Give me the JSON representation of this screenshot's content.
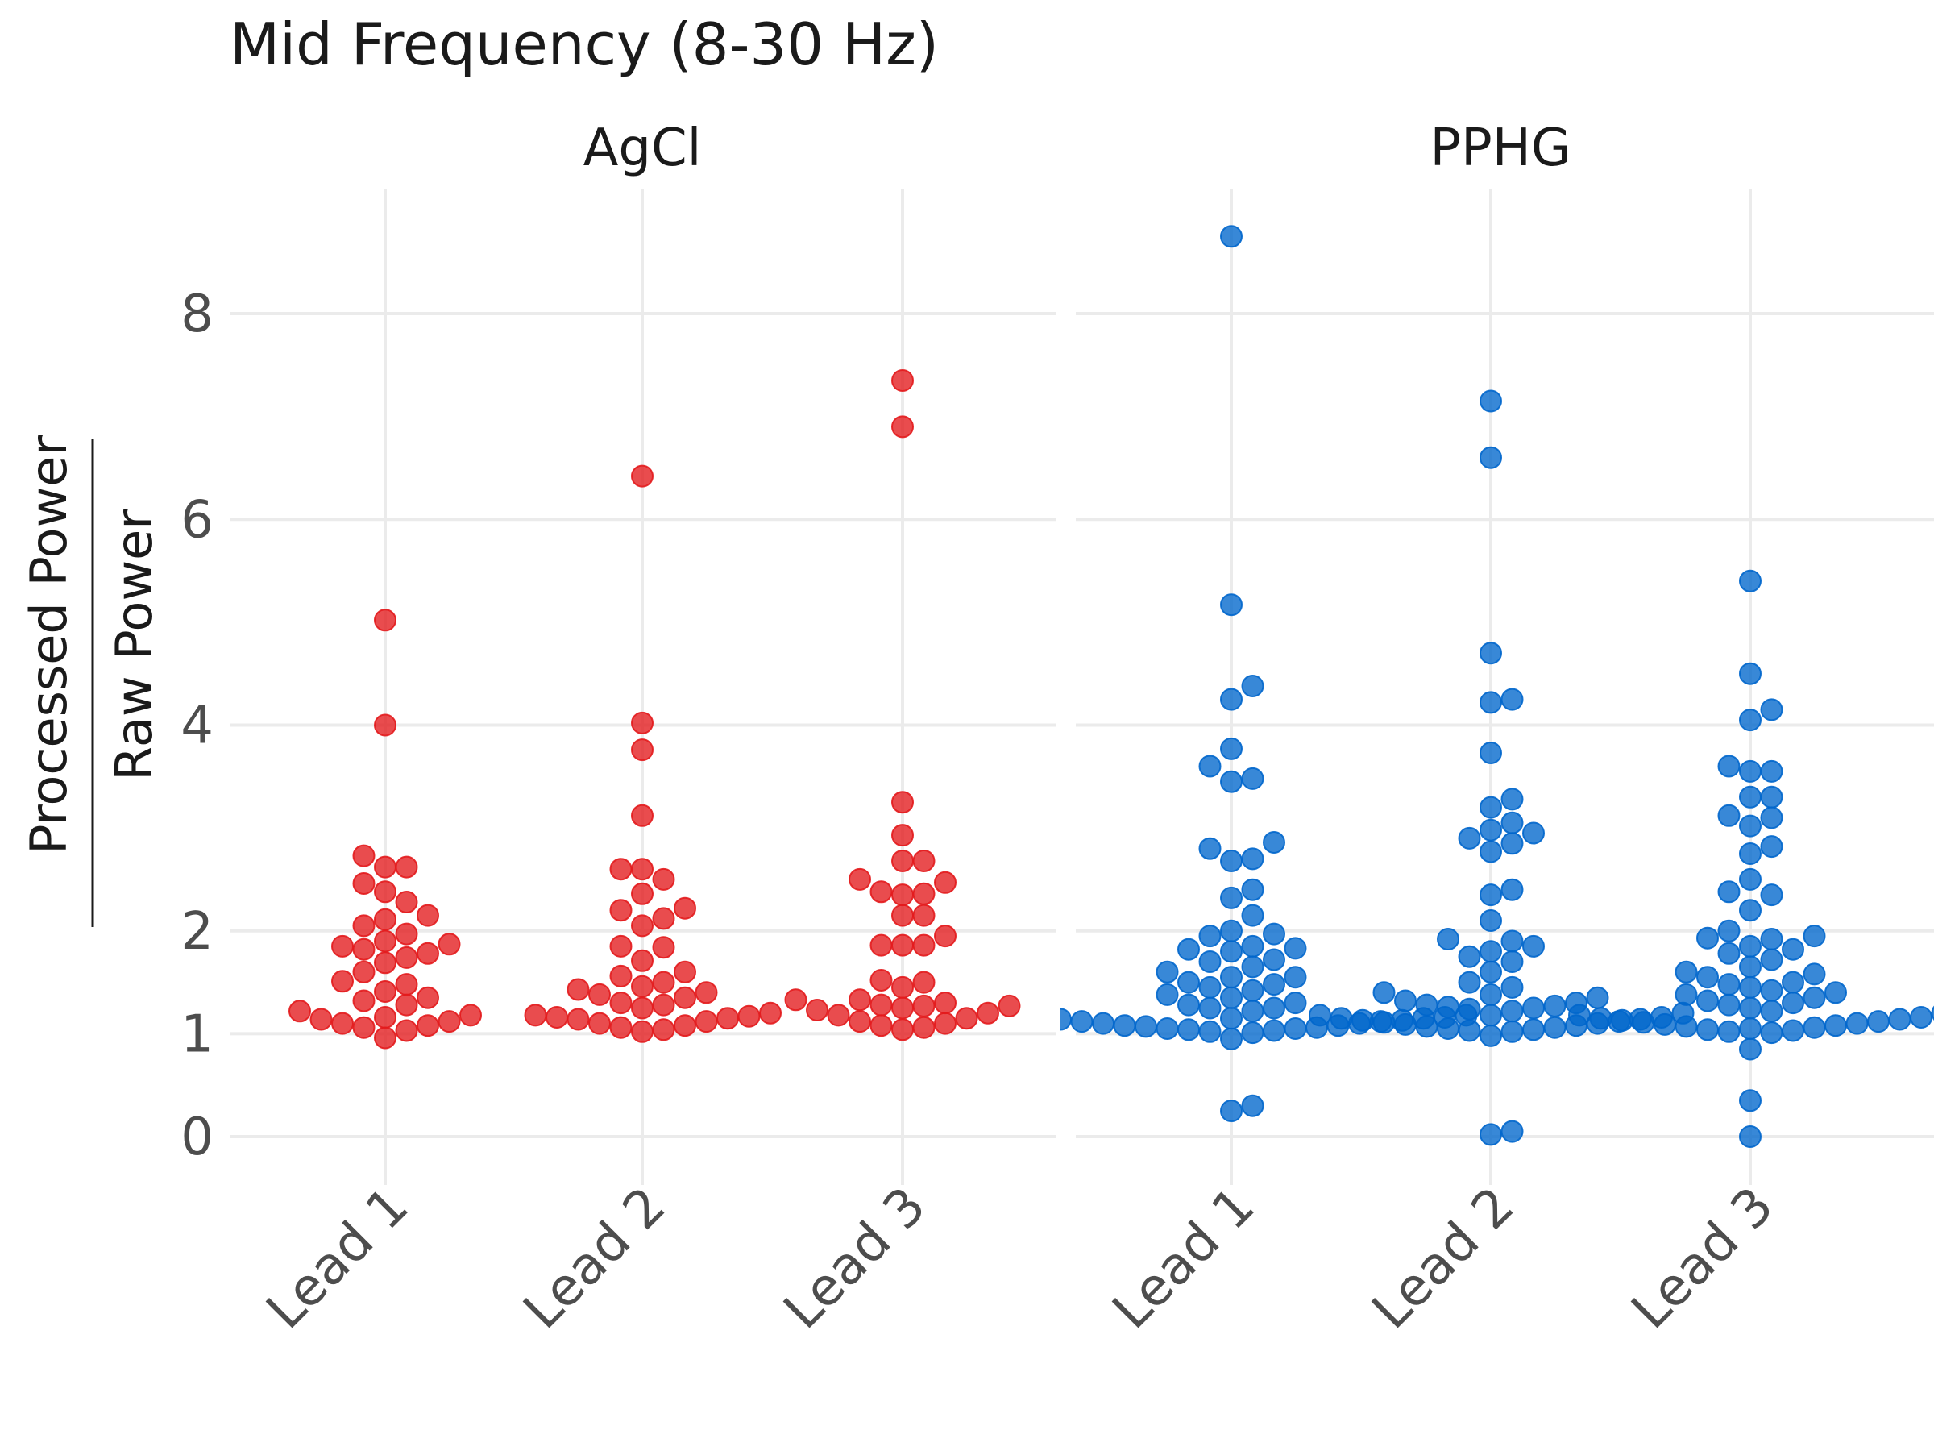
{
  "chart_data": {
    "type": "scatter",
    "title": "Mid Frequency (8-30 Hz)",
    "ylabel": {
      "numerator": "Processed Power",
      "denominator": "Raw Power"
    },
    "xlabel": "",
    "ylim": [
      -0.45,
      9.2
    ],
    "y_ticks": [
      0,
      1,
      2,
      4,
      6,
      8
    ],
    "grid": true,
    "categories": [
      "Lead 1",
      "Lead 2",
      "Lead 3"
    ],
    "panels": [
      {
        "name": "AgCl",
        "color": "#e31a1c",
        "values": {
          "Lead 1": [
            5.02,
            4.0,
            2.73,
            2.62,
            2.62,
            2.46,
            2.38,
            2.28,
            2.15,
            2.11,
            2.05,
            1.97,
            1.9,
            1.87,
            1.85,
            1.82,
            1.78,
            1.74,
            1.69,
            1.6,
            1.51,
            1.48,
            1.41,
            1.35,
            1.32,
            1.28,
            1.22,
            1.18,
            1.16,
            1.14,
            1.12,
            1.1,
            1.08,
            1.06,
            1.03,
            0.96
          ],
          "Lead 2": [
            6.42,
            4.02,
            3.76,
            3.12,
            2.6,
            2.6,
            2.5,
            2.36,
            2.22,
            2.2,
            2.12,
            2.05,
            1.85,
            1.84,
            1.71,
            1.6,
            1.56,
            1.5,
            1.46,
            1.43,
            1.4,
            1.38,
            1.35,
            1.3,
            1.28,
            1.25,
            1.2,
            1.18,
            1.17,
            1.16,
            1.15,
            1.14,
            1.12,
            1.1,
            1.08,
            1.06,
            1.04,
            1.02
          ],
          "Lead 3": [
            7.35,
            6.9,
            3.25,
            2.93,
            2.68,
            2.68,
            2.5,
            2.47,
            2.38,
            2.36,
            2.35,
            2.15,
            2.15,
            1.95,
            1.86,
            1.86,
            1.86,
            1.52,
            1.5,
            1.45,
            1.33,
            1.33,
            1.3,
            1.28,
            1.27,
            1.27,
            1.25,
            1.23,
            1.2,
            1.18,
            1.15,
            1.12,
            1.1,
            1.08,
            1.06,
            1.04
          ]
        }
      },
      {
        "name": "PPHG",
        "color": "#0066cc",
        "values": {
          "Lead 1": [
            8.75,
            5.17,
            4.38,
            4.25,
            3.77,
            3.6,
            3.48,
            3.45,
            2.86,
            2.8,
            2.7,
            2.68,
            2.4,
            2.32,
            2.15,
            2.0,
            1.97,
            1.95,
            1.85,
            1.83,
            1.82,
            1.8,
            1.72,
            1.7,
            1.65,
            1.6,
            1.55,
            1.55,
            1.5,
            1.48,
            1.45,
            1.42,
            1.38,
            1.35,
            1.3,
            1.28,
            1.25,
            1.25,
            1.22,
            1.2,
            1.18,
            1.18,
            1.16,
            1.16,
            1.15,
            1.15,
            1.14,
            1.13,
            1.12,
            1.12,
            1.1,
            1.1,
            1.08,
            1.08,
            1.07,
            1.06,
            1.05,
            1.05,
            1.04,
            1.03,
            1.02,
            1.01,
            0.95,
            0.3,
            0.25
          ],
          "Lead 2": [
            7.15,
            6.6,
            4.7,
            4.25,
            4.22,
            3.73,
            3.28,
            3.2,
            3.05,
            2.98,
            2.95,
            2.9,
            2.85,
            2.77,
            2.4,
            2.35,
            2.1,
            1.92,
            1.9,
            1.85,
            1.8,
            1.75,
            1.7,
            1.6,
            1.5,
            1.45,
            1.4,
            1.38,
            1.35,
            1.32,
            1.3,
            1.28,
            1.27,
            1.26,
            1.25,
            1.24,
            1.22,
            1.2,
            1.18,
            1.18,
            1.16,
            1.15,
            1.14,
            1.13,
            1.12,
            1.11,
            1.1,
            1.09,
            1.08,
            1.07,
            1.06,
            1.05,
            1.04,
            1.03,
            1.02,
            0.98,
            0.05,
            0.02
          ],
          "Lead 3": [
            5.4,
            4.5,
            4.15,
            4.05,
            3.6,
            3.55,
            3.55,
            3.3,
            3.3,
            3.12,
            3.1,
            3.02,
            2.82,
            2.75,
            2.5,
            2.38,
            2.35,
            2.2,
            2.0,
            1.95,
            1.93,
            1.92,
            1.85,
            1.82,
            1.78,
            1.72,
            1.65,
            1.6,
            1.58,
            1.55,
            1.5,
            1.48,
            1.45,
            1.42,
            1.4,
            1.38,
            1.35,
            1.32,
            1.3,
            1.28,
            1.25,
            1.22,
            1.2,
            1.18,
            1.16,
            1.15,
            1.14,
            1.13,
            1.12,
            1.11,
            1.1,
            1.09,
            1.08,
            1.07,
            1.06,
            1.05,
            1.04,
            1.03,
            1.02,
            1.01,
            0.85,
            0.35,
            0.0
          ]
        }
      }
    ]
  }
}
